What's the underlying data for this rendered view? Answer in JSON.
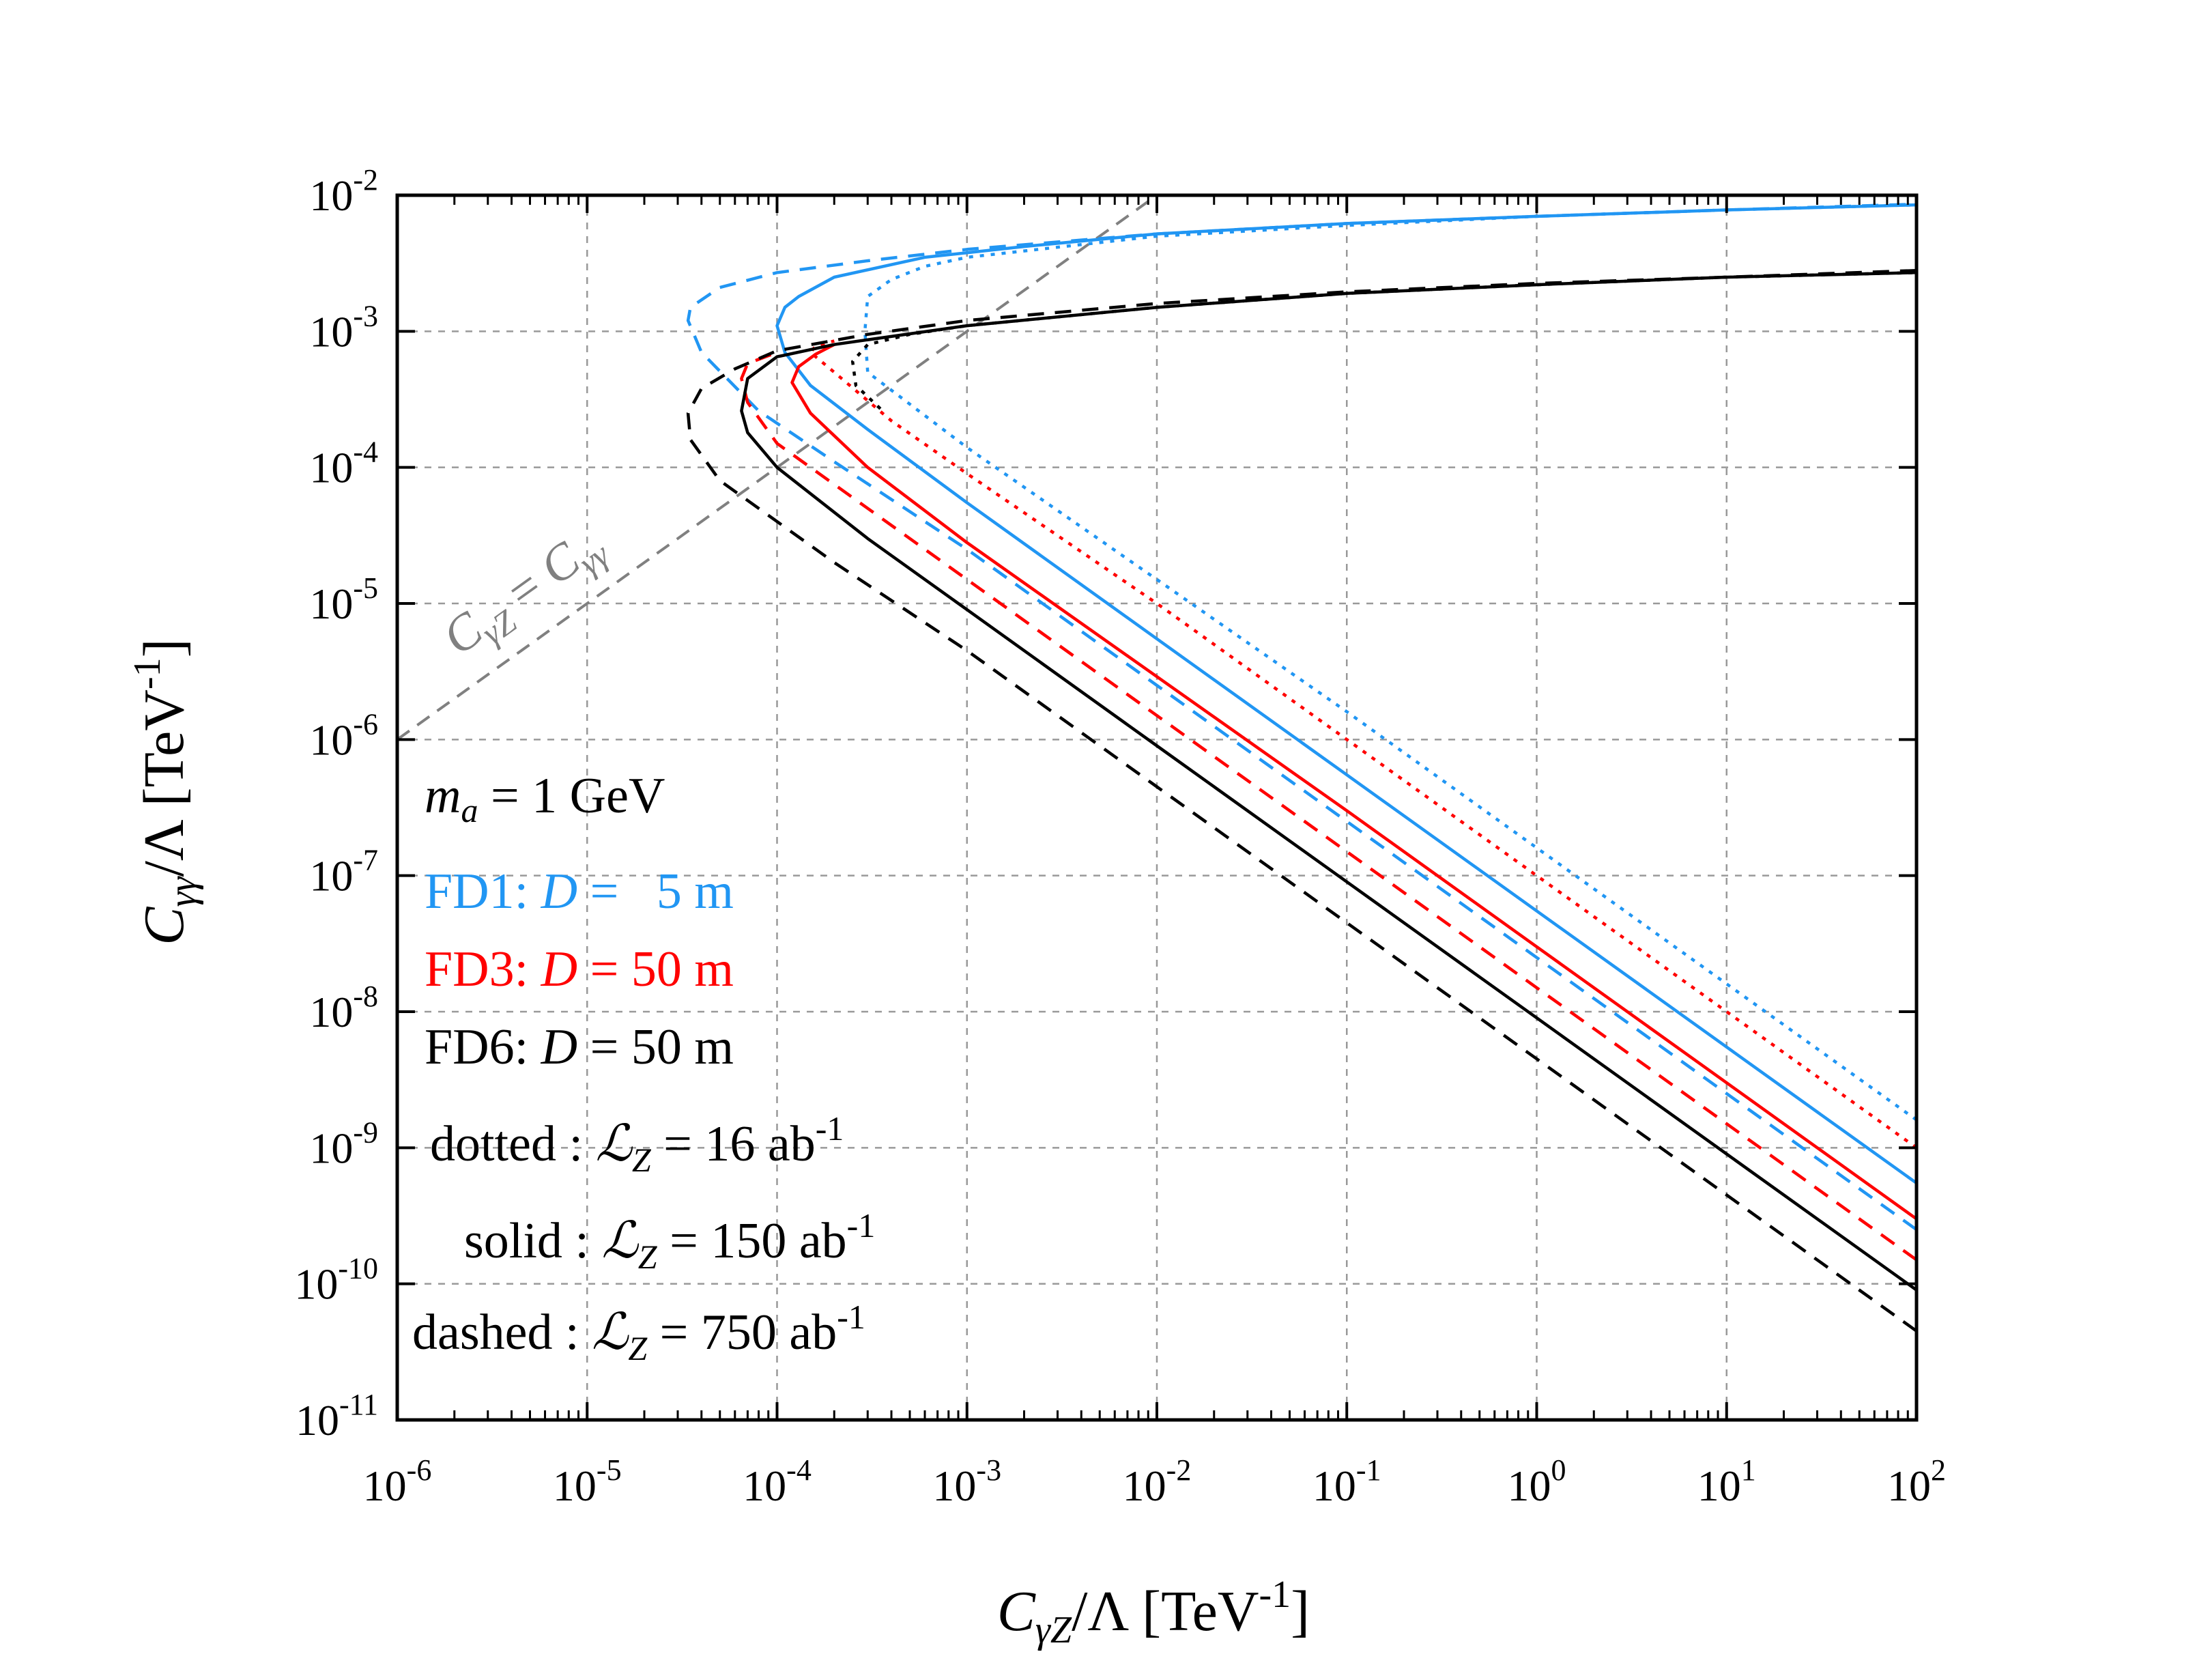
{
  "chart_data": {
    "type": "line",
    "xscale": "log",
    "yscale": "log",
    "xlim": [
      1e-06,
      100
    ],
    "ylim": [
      1e-11,
      0.01
    ],
    "grid": true,
    "xlabel": {
      "main": "C",
      "sub": "γZ",
      "rest": "/Λ [TeV",
      "sup": "-1",
      "close": "]"
    },
    "ylabel": {
      "main": "C",
      "sub": "γγ",
      "rest": "/Λ [TeV",
      "sup": "-1",
      "close": "]"
    },
    "x_ticks": [
      {
        "value": 1e-06,
        "base": "10",
        "exp": "-6"
      },
      {
        "value": 1e-05,
        "base": "10",
        "exp": "-5"
      },
      {
        "value": 0.0001,
        "base": "10",
        "exp": "-4"
      },
      {
        "value": 0.001,
        "base": "10",
        "exp": "-3"
      },
      {
        "value": 0.01,
        "base": "10",
        "exp": "-2"
      },
      {
        "value": 0.1,
        "base": "10",
        "exp": "-1"
      },
      {
        "value": 1,
        "base": "10",
        "exp": "0"
      },
      {
        "value": 10,
        "base": "10",
        "exp": "1"
      },
      {
        "value": 100,
        "base": "10",
        "exp": "2"
      }
    ],
    "y_ticks": [
      {
        "value": 1e-11,
        "base": "10",
        "exp": "-11"
      },
      {
        "value": 1e-10,
        "base": "10",
        "exp": "-10"
      },
      {
        "value": 1e-09,
        "base": "10",
        "exp": "-9"
      },
      {
        "value": 1e-08,
        "base": "10",
        "exp": "-8"
      },
      {
        "value": 1e-07,
        "base": "10",
        "exp": "-7"
      },
      {
        "value": 1e-06,
        "base": "10",
        "exp": "-6"
      },
      {
        "value": 1e-05,
        "base": "10",
        "exp": "-5"
      },
      {
        "value": 0.0001,
        "base": "10",
        "exp": "-4"
      },
      {
        "value": 0.001,
        "base": "10",
        "exp": "-3"
      },
      {
        "value": 0.01,
        "base": "10",
        "exp": "-2"
      }
    ],
    "reference_line": {
      "label_main": "C",
      "label_sub1": "γZ",
      "label_eq": " = ",
      "label_main2": "C",
      "label_sub2": "γγ",
      "x": [
        1e-06,
        0.01
      ],
      "y": [
        1e-06,
        0.01
      ],
      "color": "#808080"
    },
    "mass_label": {
      "var": "m",
      "sub": "a",
      "text": " = 1 GeV"
    },
    "detector_labels": [
      {
        "name": "FD1: ",
        "var": "D",
        "text": " =   5 m",
        "color": "#2196F3"
      },
      {
        "name": "FD3: ",
        "var": "D",
        "text": " = 50 m",
        "color": "#FF0000"
      },
      {
        "name": "FD6: ",
        "var": "D",
        "text": " = 50 m",
        "color": "#000000"
      }
    ],
    "lumi_labels": [
      {
        "style": "dotted",
        "prefix": "dotted : ",
        "lsym": "ℒ",
        "sub": "Z",
        "eq": " = 16 ab",
        "sup": "-1"
      },
      {
        "style": "solid",
        "prefix": "solid : ",
        "lsym": "ℒ",
        "sub": "Z",
        "eq": " = 150 ab",
        "sup": "-1"
      },
      {
        "style": "dashed",
        "prefix": "dashed : ",
        "lsym": "ℒ",
        "sub": "Z",
        "eq": " = 750 ab",
        "sup": "-1"
      }
    ],
    "series": [
      {
        "name": "FD1 dotted",
        "color": "#2196F3",
        "style": "dotted",
        "x": [
          100,
          10,
          1,
          0.1,
          0.01,
          0.001,
          0.0003,
          0.00029,
          0.0003,
          0.0004,
          0.0006,
          0.001,
          0.01,
          0.1,
          1,
          10,
          100
        ],
        "y": [
          1.6e-09,
          1.6e-08,
          1.6e-07,
          1.6e-06,
          1.5e-05,
          0.00014,
          0.0005,
          0.001,
          0.0018,
          0.0024,
          0.003,
          0.0035,
          0.005,
          0.006,
          0.007,
          0.0078,
          0.0085
        ]
      },
      {
        "name": "FD1 solid",
        "color": "#2196F3",
        "style": "solid",
        "x": [
          100,
          10,
          1,
          0.1,
          0.01,
          0.001,
          0.0003,
          0.00015,
          0.00011,
          0.0001,
          0.00011,
          0.00013,
          0.0002,
          0.0006,
          0.002,
          0.01,
          0.1,
          1,
          10,
          100
        ],
        "y": [
          5.5e-10,
          5.5e-09,
          5.5e-08,
          5.5e-07,
          5.5e-06,
          5.5e-05,
          0.00019,
          0.0004,
          0.0007,
          0.0011,
          0.0015,
          0.0018,
          0.0025,
          0.0035,
          0.0042,
          0.0052,
          0.0062,
          0.007,
          0.0078,
          0.0085
        ]
      },
      {
        "name": "FD1 dashed",
        "color": "#2196F3",
        "style": "dashed",
        "x": [
          100,
          10,
          1,
          0.1,
          0.01,
          0.001,
          0.0002,
          8e-05,
          4e-05,
          3.4e-05,
          3.5e-05,
          5e-05,
          0.0001,
          0.0003,
          0.001,
          0.01,
          0.1,
          1,
          10,
          100
        ],
        "y": [
          2.5e-10,
          2.5e-09,
          2.5e-08,
          2.5e-07,
          2.5e-06,
          2.5e-05,
          0.00011,
          0.00026,
          0.0007,
          0.0012,
          0.0015,
          0.0021,
          0.0027,
          0.0033,
          0.004,
          0.0052,
          0.0062,
          0.007,
          0.0078,
          0.0086
        ]
      },
      {
        "name": "FD3 dotted",
        "color": "#FF0000",
        "style": "dotted",
        "x": [
          100,
          10,
          1,
          0.1,
          0.01,
          0.001,
          0.0004,
          0.0002,
          0.00015,
          0.00016,
          0.0002
        ],
        "y": [
          1e-09,
          1e-08,
          1e-07,
          1e-06,
          1e-05,
          9e-05,
          0.00022,
          0.0005,
          0.0007,
          0.00078,
          0.00085
        ]
      },
      {
        "name": "FD3 solid",
        "color": "#FF0000",
        "style": "solid",
        "x": [
          100,
          10,
          1,
          0.1,
          0.01,
          0.001,
          0.0003,
          0.00015,
          0.00012,
          0.00013,
          0.00016,
          0.0002
        ],
        "y": [
          3e-10,
          3e-09,
          3e-08,
          3e-07,
          2.9e-06,
          2.8e-05,
          0.0001,
          0.00025,
          0.00042,
          0.00055,
          0.00068,
          0.0008
        ]
      },
      {
        "name": "FD3 dashed",
        "color": "#FF0000",
        "style": "dashed",
        "x": [
          100,
          10,
          1,
          0.1,
          0.01,
          0.001,
          0.0003,
          0.0001,
          7e-05,
          6.5e-05,
          7e-05,
          0.0001
        ],
        "y": [
          1.5e-10,
          1.5e-09,
          1.5e-08,
          1.5e-07,
          1.5e-06,
          1.5e-05,
          5e-05,
          0.00015,
          0.0003,
          0.00045,
          0.00058,
          0.0007
        ]
      },
      {
        "name": "FD6 dotted",
        "color": "#000000",
        "style": "dotted",
        "x": [
          0.00035,
          0.00026,
          0.00025,
          0.0003,
          0.0005,
          0.001,
          0.01,
          0.1,
          1,
          10,
          100
        ],
        "y": [
          0.00027,
          0.0004,
          0.0006,
          0.0008,
          0.00095,
          0.0011,
          0.0015,
          0.0019,
          0.0022,
          0.0025,
          0.0027
        ]
      },
      {
        "name": "FD6 solid",
        "color": "#000000",
        "style": "solid",
        "x": [
          100,
          10,
          1,
          0.1,
          0.01,
          0.001,
          0.0003,
          0.0001,
          7e-05,
          6.5e-05,
          7e-05,
          0.0001,
          0.0002,
          0.001,
          0.01,
          0.1,
          1,
          10,
          100
        ],
        "y": [
          9e-11,
          9e-10,
          9e-09,
          9e-08,
          9e-07,
          9e-06,
          3e-05,
          0.0001,
          0.00018,
          0.00026,
          0.00045,
          0.00065,
          0.0008,
          0.0011,
          0.0015,
          0.0019,
          0.0022,
          0.0025,
          0.0027
        ]
      },
      {
        "name": "FD6 dashed",
        "color": "#000000",
        "style": "dashed",
        "x": [
          100,
          10,
          1,
          0.1,
          0.01,
          0.001,
          0.0002,
          5e-05,
          3.5e-05,
          3.4e-05,
          4e-05,
          6e-05,
          0.0001,
          0.0003,
          0.001,
          0.01,
          0.1,
          1,
          10,
          100
        ],
        "y": [
          4.5e-11,
          4.5e-10,
          4.5e-09,
          4.5e-08,
          4.5e-07,
          4.5e-06,
          2e-05,
          8e-05,
          0.00016,
          0.00025,
          0.00038,
          0.00053,
          0.00072,
          0.00095,
          0.0012,
          0.0016,
          0.00195,
          0.00225,
          0.0025,
          0.0028
        ]
      }
    ]
  }
}
